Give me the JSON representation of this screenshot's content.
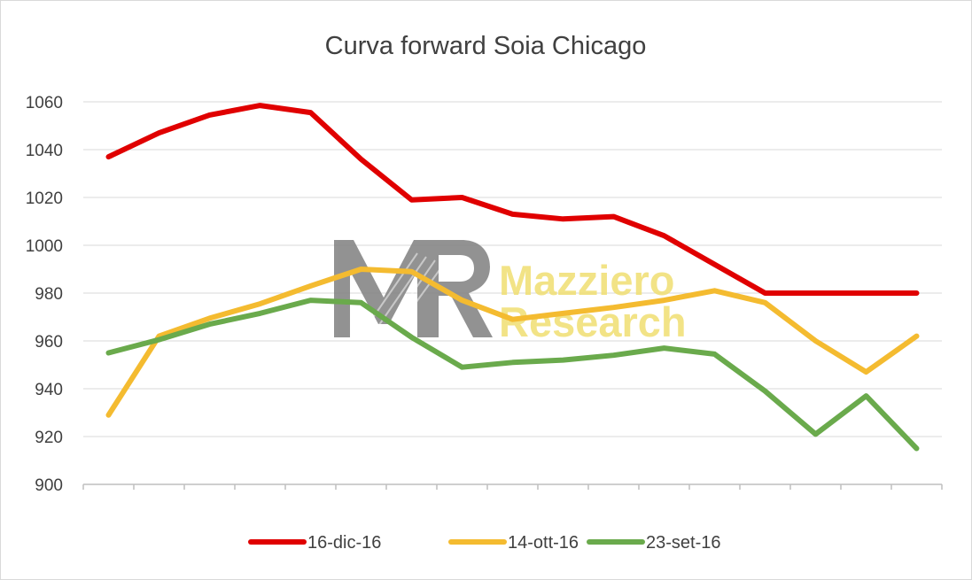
{
  "chart_data": {
    "type": "line",
    "title": "Curva forward Soia Chicago",
    "xlabel": "",
    "ylabel": "",
    "ylim": [
      900,
      1060
    ],
    "yticks": [
      900,
      920,
      940,
      960,
      980,
      1000,
      1020,
      1040,
      1060
    ],
    "grid": true,
    "legend_position": "bottom",
    "series": [
      {
        "name": "16-dic-16",
        "color": "#e00000",
        "values": [
          1037,
          1047,
          1054.5,
          1058.5,
          1055.5,
          1036,
          1019,
          1020,
          1013,
          1011,
          1012,
          1004,
          992,
          980,
          980,
          980,
          980
        ]
      },
      {
        "name": "14-ott-16",
        "color": "#f4bb30",
        "values": [
          929,
          962,
          969.5,
          975.5,
          983,
          990,
          989,
          977,
          969,
          971.5,
          974,
          977,
          981,
          976,
          960,
          947,
          962
        ]
      },
      {
        "name": "23-set-16",
        "color": "#6aaa4c",
        "values": [
          955,
          960.5,
          967,
          971.5,
          977,
          976,
          961.5,
          949,
          951,
          952,
          954,
          957,
          954.5,
          939,
          921,
          937,
          915
        ]
      }
    ]
  },
  "watermark": {
    "logo_text": "MR",
    "line1": "Mazziero",
    "line2": "Research",
    "logo_color": "#808080",
    "text_color": "#f0df72"
  }
}
